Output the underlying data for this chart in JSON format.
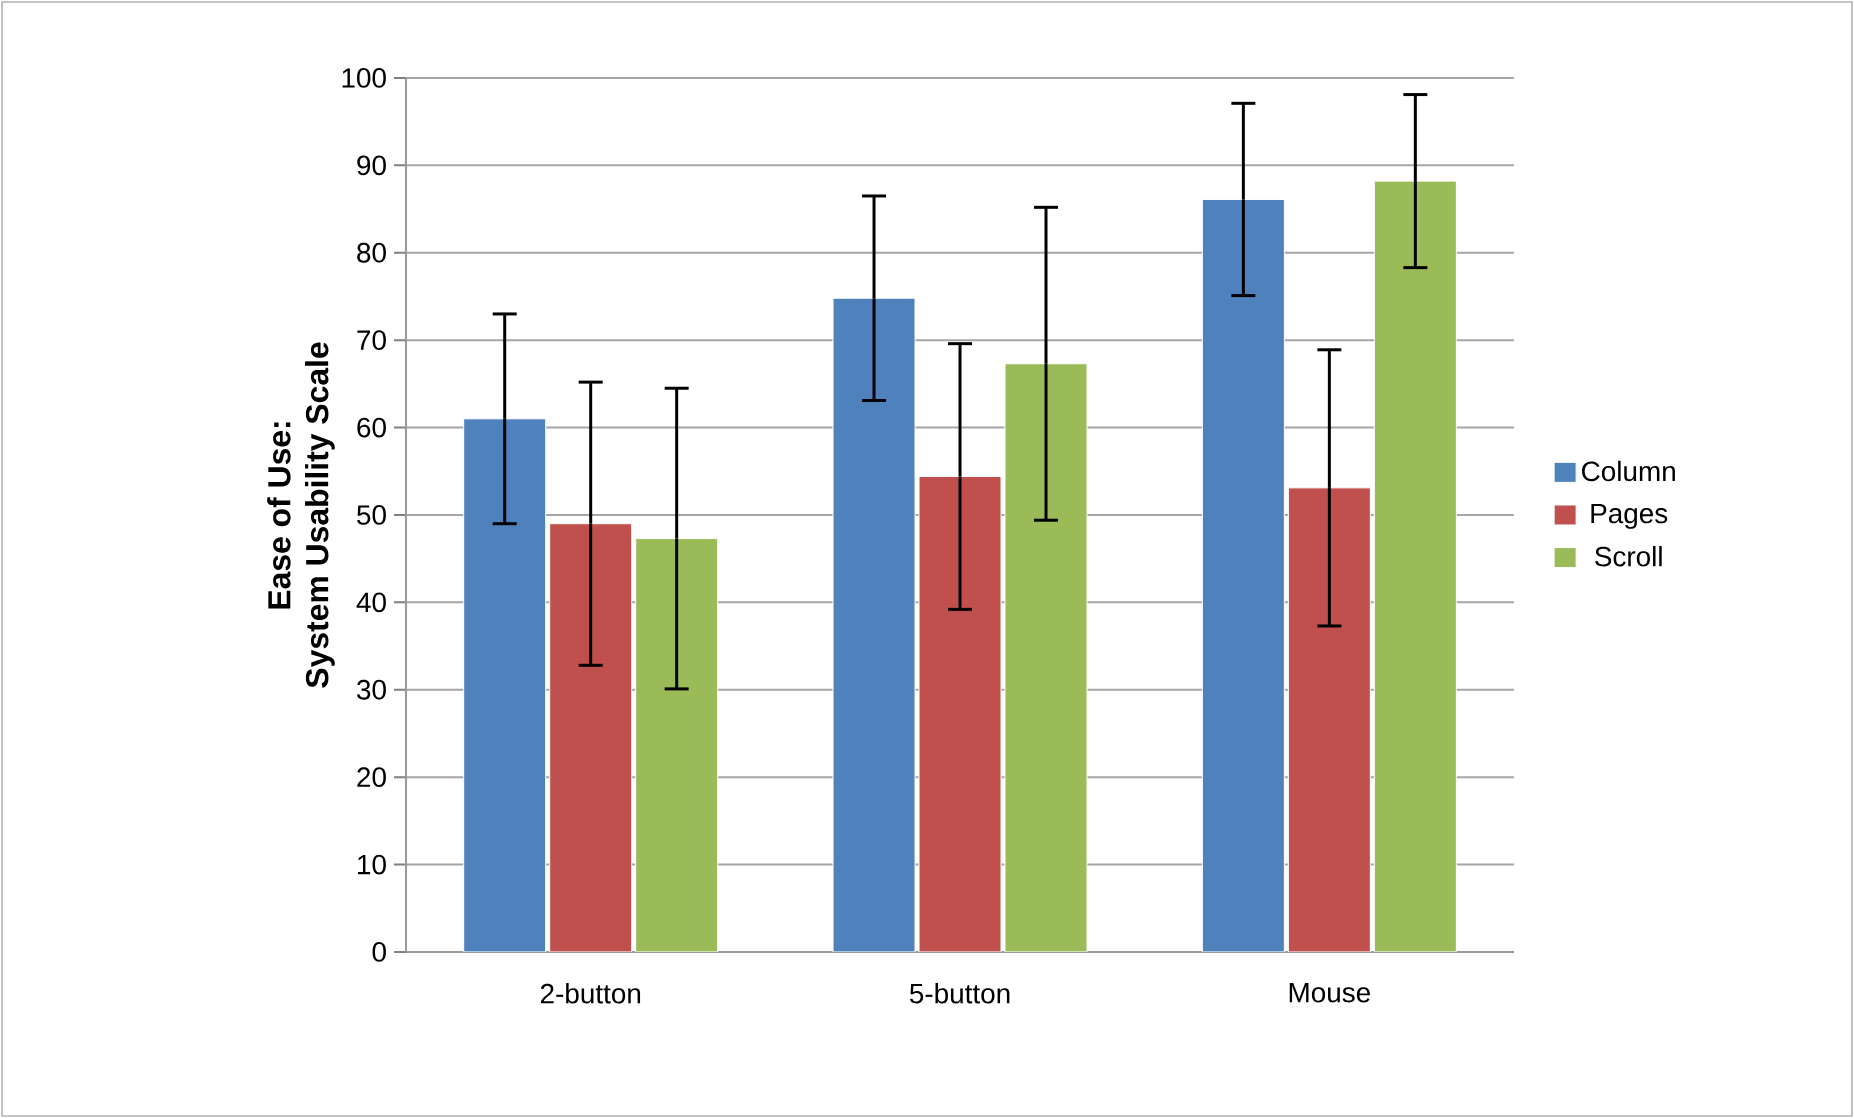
{
  "chart_data": {
    "type": "bar",
    "ylabel": "Ease of Use:\nSystem Usability Scale",
    "categories": [
      "2-button",
      "5-button",
      "Mouse"
    ],
    "series": [
      {
        "name": "Column",
        "color": "#4f81bd",
        "values": [
          61.0,
          74.8,
          86.1
        ],
        "errors": [
          12.0,
          11.7,
          11.0
        ]
      },
      {
        "name": "Pages",
        "color": "#c0504d",
        "values": [
          49.0,
          54.4,
          53.1
        ],
        "errors": [
          16.2,
          15.2,
          15.8
        ]
      },
      {
        "name": "Scroll",
        "color": "#9bbb59",
        "values": [
          47.3,
          67.3,
          88.2
        ],
        "errors": [
          17.2,
          17.9,
          9.9
        ]
      }
    ],
    "ylim": [
      0,
      100
    ],
    "yticks": [
      0,
      10,
      20,
      30,
      40,
      50,
      60,
      70,
      80,
      90,
      100
    ],
    "grid": "y",
    "legend": "right"
  }
}
